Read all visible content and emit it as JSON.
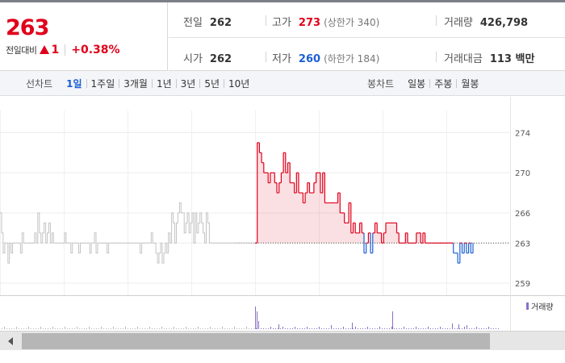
{
  "quote": {
    "price": "263",
    "change_label": "전일대비",
    "change_value": "1",
    "change_pct": "+0.38%",
    "up_icon": "triangle-up-icon"
  },
  "stats": {
    "prev_close": {
      "label": "전일",
      "value": "262"
    },
    "high": {
      "label": "고가",
      "value": "273",
      "sub": "(상한가 340)"
    },
    "volume": {
      "label": "거래량",
      "value": "426,798"
    },
    "open": {
      "label": "시가",
      "value": "262"
    },
    "low": {
      "label": "저가",
      "value": "260",
      "sub": "(하한가 184)"
    },
    "amount": {
      "label": "거래대금",
      "value": "113 백만"
    }
  },
  "line_tabs": {
    "title": "선차트",
    "items": [
      "1일",
      "1주일",
      "3개월",
      "1년",
      "3년",
      "5년",
      "10년"
    ],
    "active": "1일"
  },
  "candle_tabs": {
    "title": "봉차트",
    "items": [
      "일봉",
      "주봉",
      "월봉"
    ]
  },
  "colors": {
    "up": "#e0001b",
    "down": "#1a5fd4",
    "past": "#c4c4c4",
    "volume": "#8a6fc7"
  },
  "chart_data": {
    "type": "line",
    "title": "",
    "xlabel": "",
    "ylabel": "",
    "y_ticks": [
      "274",
      "270",
      "266",
      "263",
      "259"
    ],
    "ylim": [
      258.6,
      275.4
    ],
    "baseline": 263,
    "volume_legend": "거래량",
    "previous_day_series": {
      "name": "",
      "values": [
        266,
        264,
        262,
        263,
        263,
        261,
        263,
        262,
        263,
        263,
        263,
        263,
        263,
        262,
        264,
        263,
        263,
        263,
        263,
        263,
        263,
        263,
        264,
        263,
        266,
        264,
        263,
        264,
        265,
        263,
        264,
        265,
        263,
        264,
        263,
        263,
        263,
        263,
        263,
        263,
        263,
        264,
        263,
        263,
        263,
        262,
        263,
        263,
        263,
        263,
        262,
        263,
        263,
        263,
        263,
        263,
        263,
        262,
        263,
        263,
        264,
        262,
        263,
        263,
        263,
        263,
        263,
        263,
        262,
        263,
        263,
        263,
        263,
        263,
        263,
        263,
        263,
        263,
        263,
        263,
        263,
        263,
        263,
        263,
        263,
        263,
        263,
        263,
        263,
        262,
        263,
        263,
        263,
        263,
        263,
        263,
        264,
        263,
        263,
        262,
        261,
        262,
        263,
        261,
        262,
        263,
        262,
        264,
        263,
        266,
        265,
        263,
        265,
        266,
        267,
        266,
        266,
        264,
        265,
        266,
        264,
        265,
        266,
        263,
        266,
        264,
        265,
        266,
        265,
        264,
        263,
        266,
        265,
        263,
        263,
        263,
        263,
        263,
        263,
        263,
        263,
        263,
        263,
        263,
        263,
        263,
        263,
        263,
        263,
        263,
        263,
        263,
        263,
        263,
        263,
        263,
        263,
        263,
        263,
        263,
        263,
        263,
        263
      ]
    },
    "today_series": {
      "name": "",
      "values": [
        263,
        273,
        272,
        271,
        270,
        270,
        269,
        270,
        270,
        269,
        268,
        269,
        270,
        272,
        270,
        271,
        269,
        269,
        268,
        270,
        268,
        268,
        267,
        268,
        269,
        268,
        268,
        269,
        270,
        270,
        268,
        270,
        267,
        267,
        267,
        267,
        267,
        267,
        268,
        266,
        266,
        265,
        265,
        267,
        264,
        265,
        264,
        264,
        265,
        264,
        262,
        263,
        264,
        262,
        264,
        265,
        264,
        264,
        263,
        264,
        265,
        265,
        265,
        265,
        265,
        264,
        263,
        263,
        263,
        264,
        263,
        263,
        263,
        263,
        264,
        264,
        263,
        264,
        263,
        263,
        263,
        263,
        263,
        263,
        263,
        263,
        263,
        263,
        263,
        263,
        263,
        262,
        262,
        261,
        263,
        262,
        263,
        262,
        263,
        262,
        263
      ]
    },
    "volume_spikes": [
      {
        "x": 316,
        "h": 28
      },
      {
        "x": 318,
        "h": 22
      },
      {
        "x": 320,
        "h": 10
      },
      {
        "x": 345,
        "h": 6
      },
      {
        "x": 410,
        "h": 5
      },
      {
        "x": 436,
        "h": 8
      },
      {
        "x": 486,
        "h": 22
      },
      {
        "x": 560,
        "h": 7
      },
      {
        "x": 568,
        "h": 6
      },
      {
        "x": 578,
        "h": 5
      }
    ]
  },
  "scrollbar": {
    "left_icon": "chevron-left-icon",
    "position": 0.04,
    "visible_fraction": 0.83
  }
}
